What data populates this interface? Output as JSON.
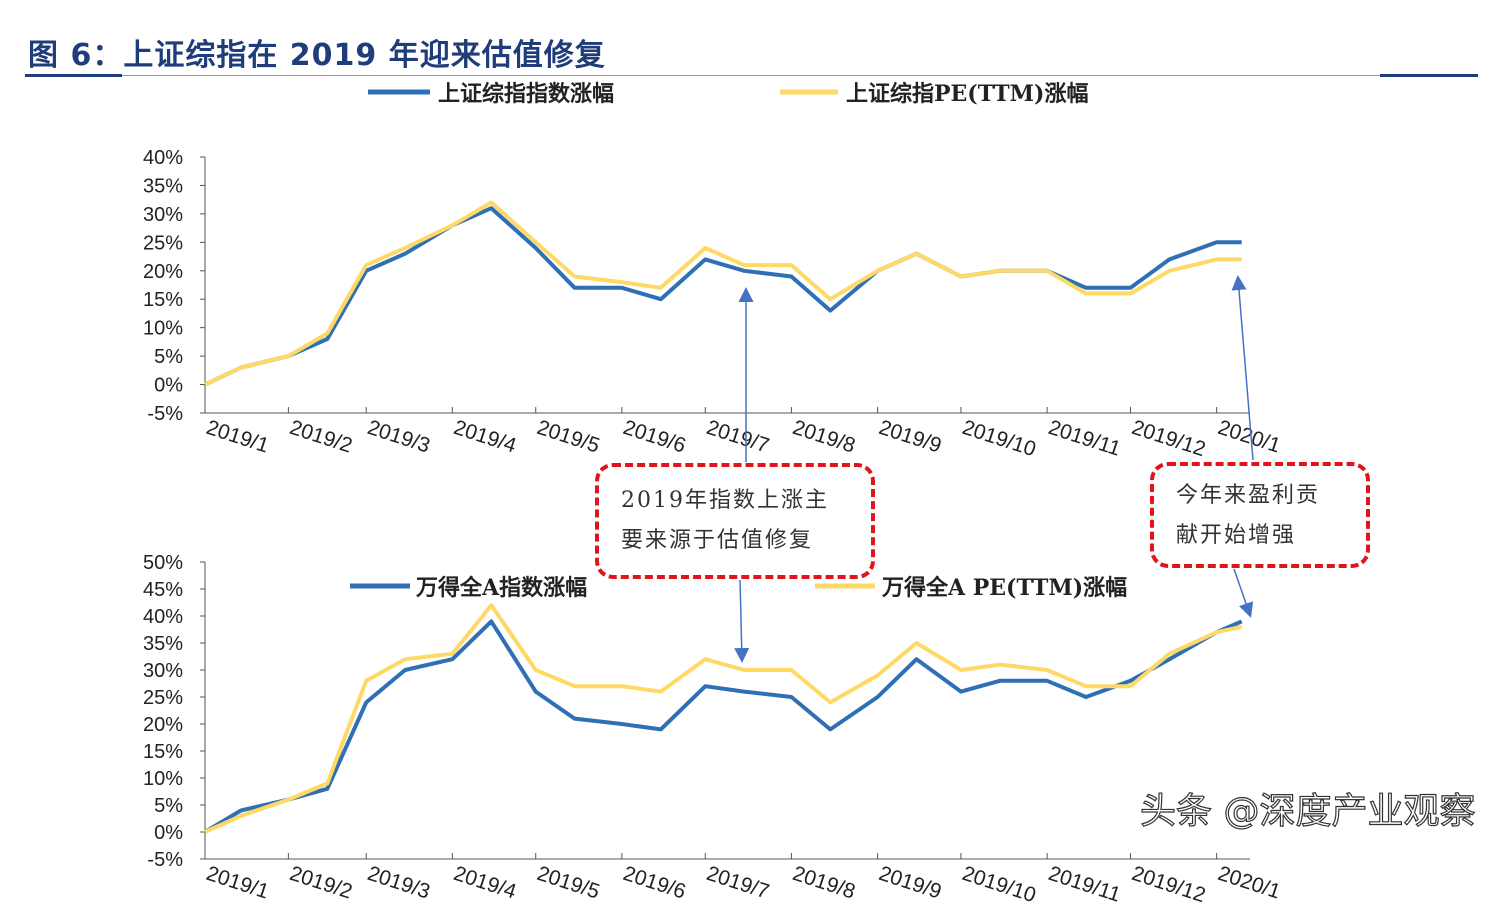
{
  "title": "图 6：上证综指在 2019 年迎来估值修复",
  "watermark": "头条 @深度产业观察",
  "colors": {
    "blue": "#2e6fb5",
    "yellow": "#ffd966",
    "title": "#1f3d7a",
    "annotation": "#e0141b"
  },
  "annotations": [
    {
      "lines": [
        "2019年指数上涨主",
        "要来源于估值修复"
      ]
    },
    {
      "lines": [
        "今年来盈利贡",
        "献开始增强"
      ]
    }
  ],
  "chart_data": [
    {
      "type": "line",
      "x_tick_labels": [
        "2019/1",
        "2019/2",
        "2019/3",
        "2019/4",
        "2019/5",
        "2019/6",
        "2019/7",
        "2019/8",
        "2019/9",
        "2019/10",
        "2019/11",
        "2019/12",
        "2020/1"
      ],
      "y_tick_labels": [
        "-5%",
        "0%",
        "5%",
        "10%",
        "15%",
        "20%",
        "25%",
        "30%",
        "35%",
        "40%"
      ],
      "ylim": [
        -5,
        40
      ],
      "legend": "top",
      "x": [
        "2019-01-02",
        "2019-01-15",
        "2019-02-01",
        "2019-02-15",
        "2019-03-01",
        "2019-03-15",
        "2019-04-01",
        "2019-04-15",
        "2019-05-01",
        "2019-05-15",
        "2019-06-01",
        "2019-06-15",
        "2019-07-01",
        "2019-07-15",
        "2019-08-01",
        "2019-08-15",
        "2019-09-01",
        "2019-09-15",
        "2019-10-01",
        "2019-10-15",
        "2019-11-01",
        "2019-11-15",
        "2019-12-01",
        "2019-12-15",
        "2020-01-01",
        "2020-01-10"
      ],
      "series": [
        {
          "name": "上证综指指数涨幅",
          "color": "#2e6fb5",
          "values": [
            0,
            3,
            5,
            8,
            20,
            23,
            28,
            31,
            24,
            17,
            17,
            15,
            22,
            20,
            19,
            13,
            20,
            23,
            19,
            20,
            20,
            17,
            17,
            22,
            25,
            25
          ]
        },
        {
          "name": "上证综指PE(TTM)涨幅",
          "color": "#ffd966",
          "values": [
            0,
            3,
            5,
            9,
            21,
            24,
            28,
            32,
            25,
            19,
            18,
            17,
            24,
            21,
            21,
            15,
            20,
            23,
            19,
            20,
            20,
            16,
            16,
            20,
            22,
            22
          ]
        }
      ]
    },
    {
      "type": "line",
      "x_tick_labels": [
        "2019/1",
        "2019/2",
        "2019/3",
        "2019/4",
        "2019/5",
        "2019/6",
        "2019/7",
        "2019/8",
        "2019/9",
        "2019/10",
        "2019/11",
        "2019/12",
        "2020/1"
      ],
      "y_tick_labels": [
        "-5%",
        "0%",
        "5%",
        "10%",
        "15%",
        "20%",
        "25%",
        "30%",
        "35%",
        "40%",
        "45%",
        "50%"
      ],
      "ylim": [
        -5,
        50
      ],
      "legend": "top",
      "x": [
        "2019-01-02",
        "2019-01-15",
        "2019-02-01",
        "2019-02-15",
        "2019-03-01",
        "2019-03-15",
        "2019-04-01",
        "2019-04-15",
        "2019-05-01",
        "2019-05-15",
        "2019-06-01",
        "2019-06-15",
        "2019-07-01",
        "2019-07-15",
        "2019-08-01",
        "2019-08-15",
        "2019-09-01",
        "2019-09-15",
        "2019-10-01",
        "2019-10-15",
        "2019-11-01",
        "2019-11-15",
        "2019-12-01",
        "2019-12-15",
        "2020-01-01",
        "2020-01-10"
      ],
      "series": [
        {
          "name": "万得全A指数涨幅",
          "color": "#2e6fb5",
          "values": [
            0,
            4,
            6,
            8,
            24,
            30,
            32,
            39,
            26,
            21,
            20,
            19,
            27,
            26,
            25,
            19,
            25,
            32,
            26,
            28,
            28,
            25,
            28,
            32,
            37,
            39
          ]
        },
        {
          "name": "万得全A PE(TTM)涨幅",
          "color": "#ffd966",
          "values": [
            0,
            3,
            6,
            9,
            28,
            32,
            33,
            42,
            30,
            27,
            27,
            26,
            32,
            30,
            30,
            24,
            29,
            35,
            30,
            31,
            30,
            27,
            27,
            33,
            37,
            38
          ]
        }
      ]
    }
  ]
}
